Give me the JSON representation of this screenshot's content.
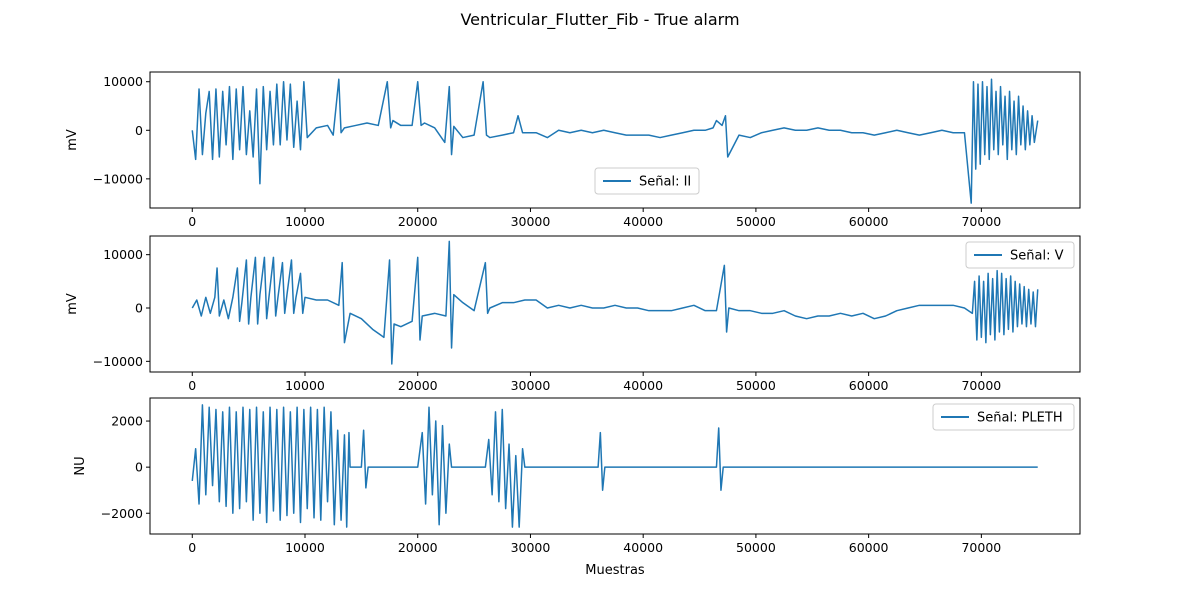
{
  "title": "Ventricular_Flutter_Fib - True alarm",
  "xlabel": "Muestras",
  "color": "#1f77b4",
  "chart_data": [
    {
      "type": "line",
      "ylabel": "mV",
      "legend": "Señal: II",
      "legend_position": "bottom-center",
      "xlim": [
        -3750,
        78750
      ],
      "ylim": [
        -16000,
        12000
      ],
      "xticks": [
        0,
        10000,
        20000,
        30000,
        40000,
        50000,
        60000,
        70000
      ],
      "yticks": [
        -10000,
        0,
        10000
      ],
      "x": [
        0,
        300,
        600,
        900,
        1200,
        1500,
        1800,
        2100,
        2400,
        2700,
        3000,
        3300,
        3600,
        3900,
        4200,
        4500,
        4800,
        5100,
        5400,
        5700,
        6000,
        6300,
        6600,
        6900,
        7200,
        7500,
        7800,
        8100,
        8400,
        8700,
        9000,
        9300,
        9600,
        9900,
        10200,
        11000,
        12000,
        12500,
        13000,
        13200,
        13500,
        14500,
        15500,
        16500,
        17300,
        17600,
        17800,
        18500,
        19500,
        20000,
        20300,
        20600,
        21500,
        22400,
        22800,
        23000,
        23200,
        24000,
        25000,
        25800,
        26100,
        26400,
        27500,
        28500,
        28900,
        29300,
        30500,
        31500,
        32500,
        33500,
        34500,
        35500,
        36500,
        37500,
        38500,
        39500,
        40500,
        41500,
        42500,
        43500,
        44500,
        45500,
        46200,
        46500,
        47000,
        47300,
        47500,
        48500,
        49500,
        50500,
        51500,
        52500,
        53500,
        54500,
        55500,
        56500,
        57500,
        58500,
        59500,
        60500,
        61500,
        62500,
        63500,
        64500,
        65500,
        66500,
        67500,
        68500,
        69100,
        69300,
        69500,
        69700,
        69900,
        70100,
        70300,
        70500,
        70700,
        70900,
        71100,
        71300,
        71500,
        71700,
        71900,
        72100,
        72300,
        72500,
        72700,
        72900,
        73100,
        73300,
        73500,
        73700,
        73900,
        74100,
        74300,
        74500,
        74700,
        75000
      ],
      "y": [
        0,
        -6000,
        8500,
        -5000,
        3500,
        8000,
        -6000,
        8500,
        -5500,
        8000,
        -3000,
        9000,
        -6000,
        8500,
        -4000,
        9000,
        -5000,
        4000,
        -5500,
        8500,
        -11000,
        9000,
        -4000,
        8000,
        -3000,
        9500,
        -3000,
        10000,
        -2000,
        9500,
        -3500,
        6000,
        -4000,
        10000,
        -1500,
        500,
        1000,
        -1000,
        10500,
        -500,
        500,
        1000,
        1500,
        1000,
        10000,
        500,
        2000,
        1000,
        1000,
        10000,
        1000,
        1500,
        500,
        -2500,
        9000,
        -5000,
        800,
        -1500,
        -1000,
        10000,
        -1000,
        -1500,
        -1000,
        -500,
        3000,
        -500,
        -500,
        -1500,
        0,
        -500,
        0,
        -500,
        0,
        -500,
        -1000,
        -1000,
        -1000,
        -1500,
        -1000,
        -500,
        0,
        0,
        500,
        2000,
        1000,
        3000,
        -5500,
        -1000,
        -1500,
        -500,
        0,
        500,
        0,
        0,
        500,
        0,
        0,
        -500,
        -500,
        -1000,
        -500,
        0,
        -500,
        -1000,
        -500,
        0,
        -500,
        -500,
        -15000,
        10000,
        -8000,
        9500,
        -7000,
        10000,
        -5000,
        9000,
        -6000,
        10500,
        -4000,
        8000,
        -5000,
        9000,
        -3000,
        7000,
        -6000,
        8000,
        -4000,
        6000,
        -5000,
        7000,
        -3000,
        5000,
        -4000,
        4000,
        -3000,
        3000,
        -2500,
        2000
      ]
    },
    {
      "type": "line",
      "ylabel": "mV",
      "legend": "Señal: V",
      "legend_position": "top-right",
      "xlim": [
        -3750,
        78750
      ],
      "ylim": [
        -12000,
        13500
      ],
      "xticks": [
        0,
        10000,
        20000,
        30000,
        40000,
        50000,
        60000,
        70000
      ],
      "yticks": [
        -10000,
        0,
        10000
      ],
      "x": [
        0,
        400,
        800,
        1200,
        1600,
        2000,
        2200,
        2400,
        2800,
        3200,
        3600,
        4000,
        4200,
        4400,
        4800,
        5000,
        5200,
        5600,
        5800,
        6000,
        6400,
        6600,
        6800,
        7200,
        7400,
        7600,
        8000,
        8200,
        8400,
        8800,
        9000,
        9200,
        9600,
        9800,
        10000,
        11000,
        12000,
        13000,
        13300,
        13500,
        14000,
        15000,
        16000,
        17000,
        17500,
        17700,
        17900,
        18500,
        19500,
        20000,
        20200,
        20400,
        21500,
        22500,
        22800,
        23000,
        23200,
        24000,
        25000,
        26000,
        26200,
        26400,
        27500,
        28500,
        29500,
        30500,
        31500,
        32500,
        33500,
        34500,
        35500,
        36500,
        37500,
        38500,
        39500,
        40500,
        41500,
        42500,
        43500,
        44500,
        45500,
        46500,
        47200,
        47400,
        47600,
        48500,
        49500,
        50500,
        51500,
        52500,
        53500,
        54500,
        55500,
        56500,
        57500,
        58500,
        59500,
        60500,
        61500,
        62500,
        63500,
        64500,
        65500,
        66500,
        67500,
        68500,
        69200,
        69400,
        69600,
        69800,
        70000,
        70200,
        70400,
        70600,
        70800,
        71000,
        71200,
        71400,
        71600,
        71800,
        72000,
        72200,
        72400,
        72600,
        72800,
        73000,
        73200,
        73400,
        73600,
        73800,
        74000,
        74200,
        74400,
        74600,
        74800,
        75000
      ],
      "y": [
        0,
        1500,
        -1500,
        2000,
        -1000,
        2000,
        7500,
        -1500,
        1500,
        -2000,
        2000,
        7500,
        -2500,
        1000,
        9000,
        -3000,
        2000,
        9500,
        -3000,
        2500,
        9500,
        -2000,
        2000,
        9500,
        -1500,
        2000,
        8500,
        -1000,
        2500,
        9000,
        -1000,
        2000,
        6500,
        -1000,
        2000,
        1500,
        1500,
        500,
        8500,
        -6500,
        -1000,
        -2000,
        -4000,
        -5500,
        9000,
        -10500,
        -3000,
        -3500,
        -2500,
        9500,
        -6000,
        -1500,
        -1000,
        -1500,
        12500,
        -7500,
        2500,
        1000,
        -500,
        8500,
        -1000,
        0,
        1000,
        1000,
        1500,
        1500,
        0,
        500,
        0,
        500,
        0,
        0,
        500,
        0,
        0,
        -500,
        -500,
        -500,
        0,
        500,
        -500,
        -500,
        8000,
        -4500,
        0,
        -500,
        -500,
        -1000,
        -1000,
        -500,
        -1500,
        -2000,
        -1500,
        -1500,
        -1000,
        -1500,
        -1000,
        -2000,
        -1500,
        -500,
        0,
        500,
        500,
        500,
        500,
        0,
        -1000,
        5000,
        -6000,
        6000,
        -5500,
        5000,
        -6500,
        6500,
        -5000,
        5500,
        -6000,
        7000,
        -4500,
        6500,
        -5000,
        5500,
        -4000,
        6000,
        -4500,
        5000,
        -3500,
        4500,
        -3000,
        4000,
        -3500,
        3500,
        -3000,
        3000,
        -3500,
        3500
      ]
    },
    {
      "type": "line",
      "ylabel": "NU",
      "legend": "Señal: PLETH",
      "legend_position": "top-right",
      "xlim": [
        -3750,
        78750
      ],
      "ylim": [
        -2900,
        3000
      ],
      "xticks": [
        0,
        10000,
        20000,
        30000,
        40000,
        50000,
        60000,
        70000
      ],
      "yticks": [
        -2000,
        0,
        2000
      ],
      "x": [
        0,
        300,
        600,
        900,
        1200,
        1500,
        1800,
        2100,
        2400,
        2700,
        3000,
        3300,
        3600,
        3900,
        4200,
        4500,
        4800,
        5100,
        5400,
        5700,
        6000,
        6300,
        6600,
        6900,
        7200,
        7500,
        7800,
        8100,
        8400,
        8700,
        9000,
        9300,
        9600,
        9900,
        10200,
        10500,
        10800,
        11100,
        11400,
        11700,
        12000,
        12300,
        12600,
        12900,
        13200,
        13500,
        13700,
        13900,
        14000,
        15000,
        15200,
        15400,
        15600,
        16000,
        20000,
        20400,
        20700,
        21000,
        21300,
        21600,
        21900,
        22200,
        22500,
        22800,
        23000,
        26000,
        26300,
        26600,
        26900,
        27200,
        27500,
        27800,
        28100,
        28400,
        28700,
        29000,
        29300,
        29500,
        36000,
        36200,
        36400,
        36600,
        46500,
        46700,
        46900,
        47100,
        75000
      ],
      "y": [
        -600,
        800,
        -1600,
        2700,
        -1200,
        2600,
        -800,
        2500,
        -1500,
        2400,
        -1700,
        2600,
        -2000,
        2400,
        -1800,
        2600,
        -1500,
        2500,
        -2300,
        2600,
        -2000,
        2400,
        -2400,
        2600,
        -1900,
        2500,
        -2300,
        2600,
        -2100,
        2400,
        -2000,
        2600,
        -2400,
        2500,
        -1800,
        2600,
        -2200,
        2500,
        -2300,
        2600,
        -1500,
        2400,
        -2500,
        1600,
        -2300,
        1400,
        -2600,
        1500,
        0,
        0,
        1600,
        -900,
        0,
        0,
        0,
        1500,
        -1600,
        2600,
        -1200,
        2000,
        -2500,
        1800,
        -2000,
        1000,
        0,
        0,
        1200,
        -1200,
        2400,
        -1500,
        2500,
        -1800,
        1000,
        -2600,
        500,
        -2600,
        800,
        0,
        0,
        1500,
        -1000,
        0,
        0,
        1700,
        -1000,
        0,
        0
      ]
    }
  ]
}
